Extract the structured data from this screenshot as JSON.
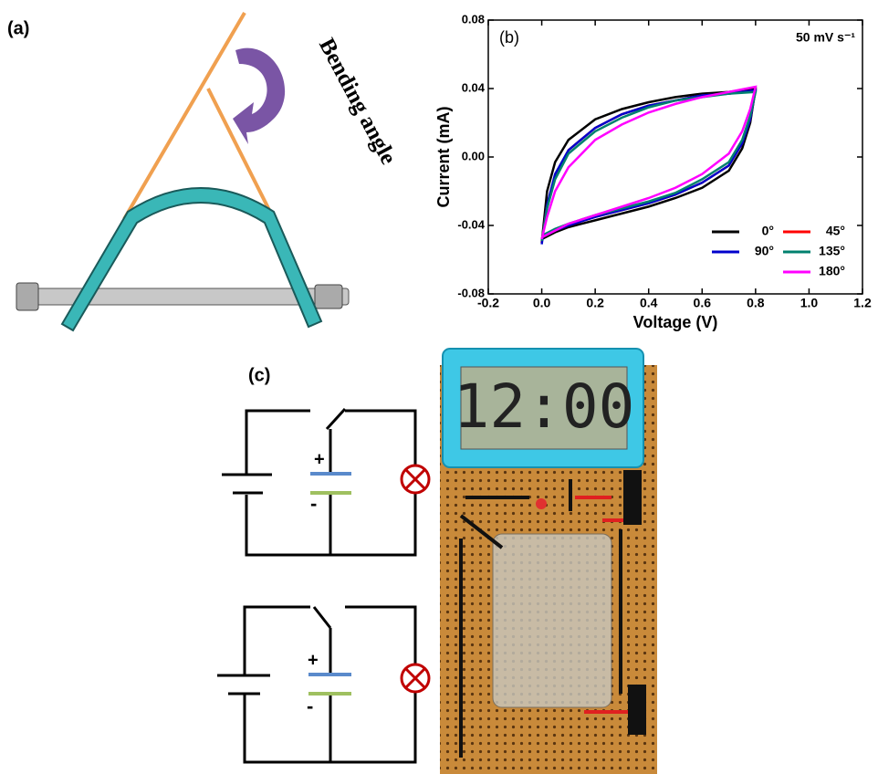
{
  "panel_a": {
    "label": "(a)",
    "annotation": "Bending angle"
  },
  "chart_data": {
    "type": "line",
    "panel_label": "(b)",
    "annotation": "50 mV s⁻¹",
    "x_label": "Voltage (V)",
    "y_label": "Current (mA)",
    "xlim": [
      -0.2,
      1.2
    ],
    "ylim": [
      -0.08,
      0.08
    ],
    "xticks": [
      -0.2,
      {
        "value": 0,
        "label": "0.0"
      },
      0.2,
      0.4,
      0.6,
      0.8,
      {
        "value": 1,
        "label": "1.0"
      },
      1.2
    ],
    "yticks": [
      -0.08,
      -0.04,
      {
        "value": 0,
        "label": "0.00"
      },
      0.04,
      0.08
    ],
    "legend": "lower right",
    "x": [
      0,
      0.02,
      0.05,
      0.1,
      0.2,
      0.3,
      0.4,
      0.5,
      0.6,
      0.7,
      0.8,
      0.78,
      0.75,
      0.7,
      0.6,
      0.5,
      0.4,
      0.3,
      0.2,
      0.1,
      0.05,
      0
    ],
    "series": [
      {
        "name": "0°",
        "color": "#000000",
        "values": [
          -0.05,
          -0.02,
          -0.003,
          0.01,
          0.022,
          0.028,
          0.032,
          0.035,
          0.037,
          0.038,
          0.04,
          0.02,
          0.005,
          -0.008,
          -0.018,
          -0.024,
          -0.029,
          -0.033,
          -0.037,
          -0.041,
          -0.044,
          -0.048
        ]
      },
      {
        "name": "45°",
        "color": "#ff0000",
        "values": [
          -0.05,
          -0.028,
          -0.011,
          0.004,
          0.017,
          0.025,
          0.03,
          0.033,
          0.036,
          0.037,
          0.039,
          0.022,
          0.008,
          -0.005,
          -0.015,
          -0.022,
          -0.027,
          -0.031,
          -0.035,
          -0.04,
          -0.043,
          -0.047
        ]
      },
      {
        "name": "90°",
        "color": "#0000cc",
        "values": [
          -0.051,
          -0.028,
          -0.01,
          0.004,
          0.017,
          0.025,
          0.03,
          0.033,
          0.036,
          0.037,
          0.039,
          0.022,
          0.008,
          -0.005,
          -0.015,
          -0.022,
          -0.027,
          -0.031,
          -0.035,
          -0.04,
          -0.043,
          -0.047
        ]
      },
      {
        "name": "135°",
        "color": "#00806e",
        "values": [
          -0.049,
          -0.03,
          -0.013,
          0.002,
          0.015,
          0.023,
          0.029,
          0.033,
          0.035,
          0.037,
          0.038,
          0.024,
          0.01,
          -0.003,
          -0.013,
          -0.021,
          -0.026,
          -0.03,
          -0.034,
          -0.039,
          -0.042,
          -0.046
        ]
      },
      {
        "name": "180°",
        "color": "#ff00ff",
        "values": [
          -0.048,
          -0.035,
          -0.02,
          -0.006,
          0.01,
          0.019,
          0.026,
          0.031,
          0.035,
          0.038,
          0.041,
          0.028,
          0.015,
          0.002,
          -0.01,
          -0.018,
          -0.024,
          -0.029,
          -0.034,
          -0.039,
          -0.043,
          -0.047
        ]
      }
    ]
  },
  "panel_c": {
    "label": "(c)",
    "circuits": [
      {
        "plus": "+",
        "minus": "-"
      },
      {
        "plus": "+",
        "minus": "-"
      }
    ],
    "display": "12:00"
  }
}
